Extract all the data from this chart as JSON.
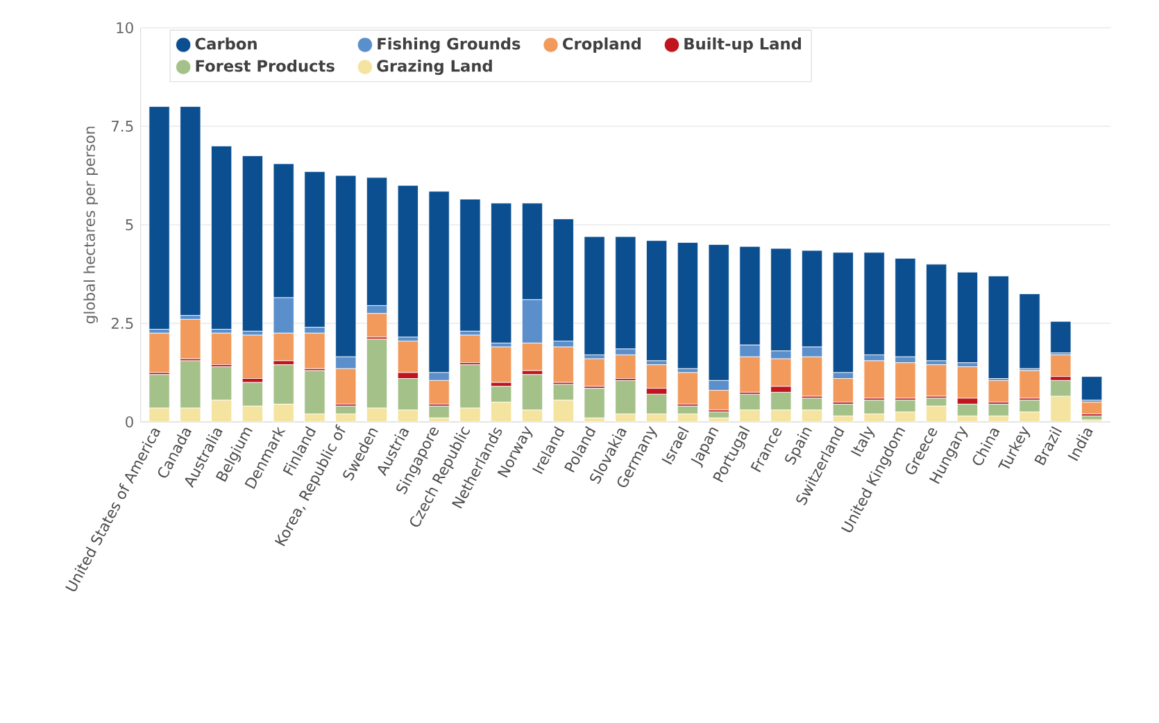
{
  "chart_data": {
    "type": "bar",
    "stacked": true,
    "ylabel": "global hectares per person",
    "categories": [
      "United States of America",
      "Canada",
      "Australia",
      "Belgium",
      "Denmark",
      "Finland",
      "Korea, Republic of",
      "Sweden",
      "Austria",
      "Singapore",
      "Czech Republic",
      "Netherlands",
      "Norway",
      "Ireland",
      "Poland",
      "Slovakia",
      "Germany",
      "Israel",
      "Japan",
      "Portugal",
      "France",
      "Spain",
      "Switzerland",
      "Italy",
      "United Kingdom",
      "Greece",
      "Hungary",
      "China",
      "Turkey",
      "Brazil",
      "India"
    ],
    "series": [
      {
        "name": "Grazing Land",
        "color": "#f5e3a0",
        "values": [
          0.35,
          0.35,
          0.55,
          0.4,
          0.45,
          0.2,
          0.2,
          0.35,
          0.3,
          0.1,
          0.35,
          0.5,
          0.3,
          0.55,
          0.1,
          0.2,
          0.2,
          0.2,
          0.1,
          0.3,
          0.3,
          0.3,
          0.15,
          0.2,
          0.25,
          0.4,
          0.15,
          0.15,
          0.25,
          0.65,
          0.05
        ]
      },
      {
        "name": "Forest Products",
        "color": "#a5c18a",
        "values": [
          0.85,
          1.2,
          0.85,
          0.6,
          1.0,
          1.1,
          0.2,
          1.75,
          0.8,
          0.3,
          1.1,
          0.4,
          0.9,
          0.4,
          0.75,
          0.85,
          0.5,
          0.2,
          0.15,
          0.4,
          0.45,
          0.3,
          0.3,
          0.35,
          0.3,
          0.2,
          0.3,
          0.3,
          0.3,
          0.4,
          0.1
        ]
      },
      {
        "name": "Built-up Land",
        "color": "#c0141e",
        "values": [
          0.05,
          0.05,
          0.05,
          0.1,
          0.1,
          0.05,
          0.05,
          0.05,
          0.15,
          0.05,
          0.05,
          0.1,
          0.1,
          0.05,
          0.05,
          0.05,
          0.15,
          0.05,
          0.05,
          0.05,
          0.15,
          0.05,
          0.05,
          0.05,
          0.05,
          0.05,
          0.15,
          0.05,
          0.05,
          0.1,
          0.05
        ]
      },
      {
        "name": "Cropland",
        "color": "#f29a5b",
        "values": [
          1.0,
          1.0,
          0.8,
          1.1,
          0.7,
          0.9,
          0.9,
          0.6,
          0.8,
          0.6,
          0.7,
          0.9,
          0.7,
          0.9,
          0.7,
          0.6,
          0.6,
          0.8,
          0.5,
          0.9,
          0.7,
          1.0,
          0.6,
          0.95,
          0.9,
          0.8,
          0.8,
          0.55,
          0.7,
          0.55,
          0.3
        ]
      },
      {
        "name": "Fishing Grounds",
        "color": "#5a8fcb",
        "values": [
          0.1,
          0.1,
          0.1,
          0.1,
          0.9,
          0.15,
          0.3,
          0.2,
          0.1,
          0.2,
          0.1,
          0.1,
          1.1,
          0.15,
          0.1,
          0.15,
          0.1,
          0.1,
          0.25,
          0.3,
          0.2,
          0.25,
          0.15,
          0.15,
          0.15,
          0.1,
          0.1,
          0.05,
          0.05,
          0.05,
          0.05
        ]
      },
      {
        "name": "Carbon",
        "color": "#0b4f91",
        "values": [
          5.65,
          5.3,
          4.65,
          4.45,
          3.4,
          3.95,
          4.6,
          3.25,
          3.85,
          4.6,
          3.35,
          3.55,
          2.45,
          3.1,
          3.0,
          2.85,
          3.05,
          3.2,
          3.45,
          2.5,
          2.6,
          2.45,
          3.05,
          2.6,
          2.5,
          2.45,
          2.3,
          2.6,
          1.9,
          0.8,
          0.6
        ]
      }
    ],
    "ylim": [
      0,
      10
    ],
    "yticks": [
      0,
      2.5,
      5,
      7.5,
      10
    ],
    "grid": "y",
    "legend": "top left"
  }
}
